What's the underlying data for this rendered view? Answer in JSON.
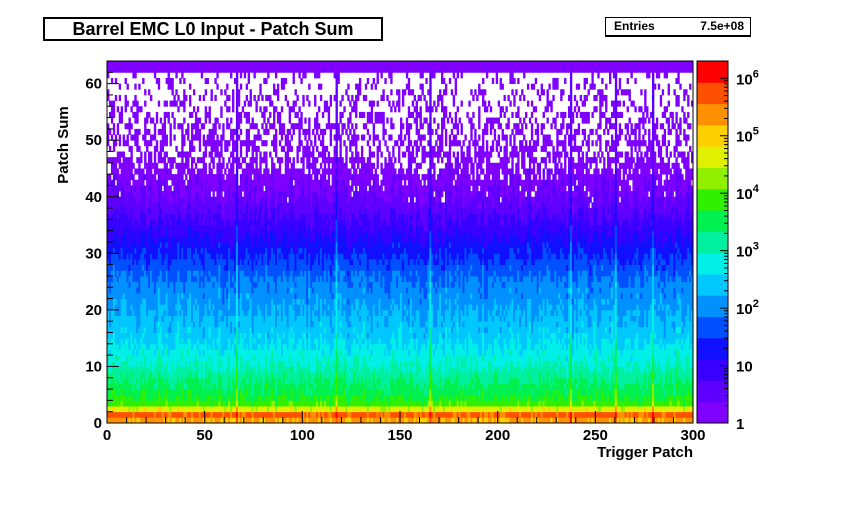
{
  "chart_data": {
    "type": "heatmap",
    "title": "Barrel EMC L0 Input - Patch Sum",
    "xlabel": "Trigger Patch",
    "ylabel": "Patch Sum",
    "xlim": [
      0,
      300
    ],
    "ylim": [
      0,
      64
    ],
    "x_ticks": [
      "0",
      "50",
      "100",
      "150",
      "200",
      "250",
      "300"
    ],
    "y_ticks": [
      "0",
      "10",
      "20",
      "30",
      "40",
      "50",
      "60"
    ],
    "z_scale": "log",
    "z_range": [
      1,
      2000000
    ],
    "z_ticks": [
      "1",
      "10",
      "10^2",
      "10^3",
      "10^4",
      "10^5",
      "10^6"
    ],
    "stats": {
      "label": "Entries",
      "value": "7.5e+08"
    },
    "bins": {
      "x": 300,
      "y": 64
    },
    "profile_log10_by_patch_sum": [
      [
        0,
        4.4
      ],
      [
        1,
        6.1
      ],
      [
        2,
        5.2
      ],
      [
        3,
        4.0
      ],
      [
        5,
        3.6
      ],
      [
        10,
        3.0
      ],
      [
        15,
        2.5
      ],
      [
        20,
        2.2
      ],
      [
        25,
        1.9
      ],
      [
        30,
        1.4
      ],
      [
        35,
        0.9
      ],
      [
        40,
        0.4
      ],
      [
        45,
        0.15
      ],
      [
        50,
        0.0
      ],
      [
        62,
        0.0
      ]
    ],
    "grid": false,
    "legend": "color-scale right"
  },
  "colors": {
    "palette": [
      "#7f00ff",
      "#5f00ff",
      "#3a00ff",
      "#1010ff",
      "#0050ff",
      "#0090ff",
      "#00c8ff",
      "#00f0e8",
      "#00f0a0",
      "#00f050",
      "#30f000",
      "#90f000",
      "#e0f000",
      "#ffd000",
      "#ff9000",
      "#ff5000",
      "#ff0000"
    ],
    "frame": "#000000",
    "background": "#ffffff"
  },
  "text": {
    "z_tick_bases": [
      "1",
      "10",
      "10",
      "10",
      "10",
      "10",
      "10"
    ],
    "z_tick_exps": [
      "",
      "",
      "2",
      "3",
      "4",
      "5",
      "6"
    ]
  }
}
